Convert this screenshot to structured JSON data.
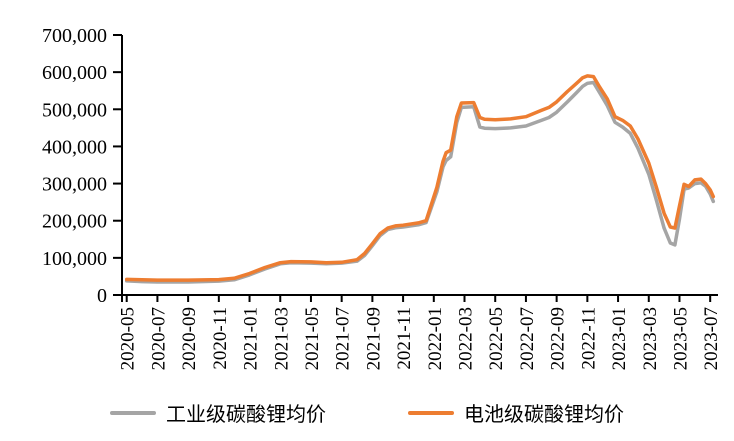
{
  "chart_data": {
    "type": "line",
    "title": "",
    "xlabel": "",
    "ylabel": "",
    "grid": false,
    "legend_position": "bottom",
    "y_axis": {
      "min": 0,
      "max": 700000,
      "step": 100000,
      "tick_values": [
        0,
        100000,
        200000,
        300000,
        400000,
        500000,
        600000,
        700000
      ],
      "tick_labels": [
        "0",
        "100,000",
        "200,000",
        "300,000",
        "400,000",
        "500,000",
        "600,000",
        "700,000"
      ]
    },
    "x_axis": {
      "unit": "year-month",
      "tick_months_since_start": [
        0,
        2,
        4,
        6,
        8,
        10,
        12,
        14,
        16,
        18,
        20,
        22,
        24,
        26,
        28,
        30,
        32,
        34,
        36,
        38
      ],
      "tick_labels": [
        "2020-05",
        "2020-07",
        "2020-09",
        "2020-11",
        "2021-01",
        "2021-03",
        "2021-05",
        "2021-07",
        "2021-09",
        "2021-11",
        "2022-01",
        "2022-03",
        "2022-05",
        "2022-07",
        "2022-09",
        "2022-11",
        "2023-01",
        "2023-03",
        "2023-05",
        "2023-07"
      ]
    },
    "x_months_since_2020_05": [
      0,
      1,
      2,
      4,
      6,
      7,
      8,
      9,
      10,
      10.7,
      12,
      13,
      14,
      15,
      15.5,
      16,
      16.5,
      17,
      17.5,
      18,
      19,
      19.5,
      20.2,
      20.6,
      20.8,
      21.1,
      21.5,
      21.8,
      22.6,
      23,
      23.3,
      24,
      25,
      26,
      27,
      27.5,
      28,
      28.7,
      29.3,
      29.7,
      30,
      30.4,
      30.8,
      31.3,
      31.8,
      32.3,
      32.8,
      33.3,
      34,
      34.5,
      35,
      35.4,
      35.7,
      36,
      36.3,
      36.6,
      37,
      37.4,
      37.7,
      38,
      38.2
    ],
    "series": [
      {
        "id": "industrial-grade",
        "name": "工业级碳酸锂均价",
        "color": "#A5A5A5",
        "values": [
          38000,
          36000,
          35000,
          35000,
          37500,
          41000,
          54000,
          70000,
          84000,
          87000,
          86000,
          84000,
          86000,
          91000,
          107000,
          133000,
          160000,
          176000,
          181000,
          183000,
          189000,
          195000,
          278000,
          345000,
          362000,
          372000,
          465000,
          505000,
          507000,
          452000,
          449000,
          448000,
          450000,
          455000,
          470000,
          478000,
          492000,
          520000,
          545000,
          562000,
          570000,
          572000,
          545000,
          510000,
          465000,
          452000,
          435000,
          395000,
          325000,
          255000,
          180000,
          140000,
          135000,
          205000,
          285000,
          288000,
          300000,
          302000,
          293000,
          272000,
          252000
        ]
      },
      {
        "id": "battery-grade",
        "name": "电池级碳酸锂均价",
        "color": "#ED7D31",
        "values": [
          42000,
          41000,
          40000,
          40000,
          41500,
          45000,
          58000,
          74000,
          87000,
          90000,
          89000,
          87000,
          88000,
          95000,
          112000,
          138000,
          165000,
          180000,
          186000,
          188000,
          194000,
          200000,
          290000,
          360000,
          383000,
          390000,
          480000,
          517000,
          518000,
          478000,
          473000,
          472000,
          474000,
          480000,
          497000,
          505000,
          520000,
          548000,
          570000,
          585000,
          590000,
          588000,
          560000,
          528000,
          480000,
          470000,
          455000,
          420000,
          355000,
          290000,
          220000,
          183000,
          180000,
          240000,
          298000,
          292000,
          310000,
          312000,
          300000,
          283000,
          265000
        ]
      }
    ]
  }
}
